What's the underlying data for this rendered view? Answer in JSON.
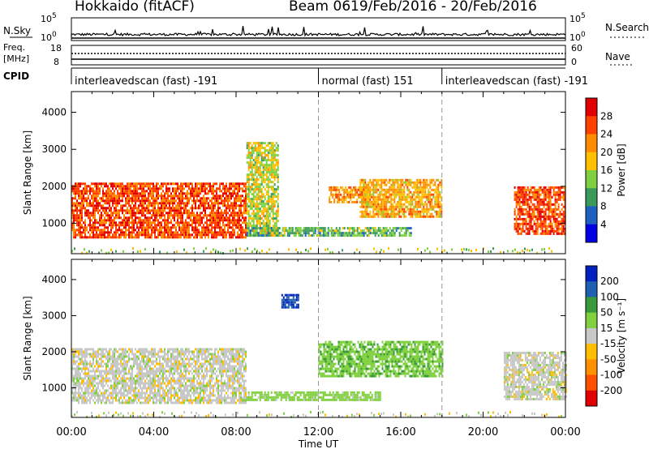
{
  "header": {
    "station": "Hokkaido (fitACF)",
    "beam": "Beam 06",
    "date_range": "19/Feb/2016 - 20/Feb/2016"
  },
  "top_panels": {
    "nsky": {
      "label": "N.Sky",
      "y_ticks": [
        "10^5",
        "10^0"
      ],
      "right_ticks": [
        "10^5",
        "10^0"
      ],
      "right_label": "N.Search"
    },
    "freq": {
      "label": "Freq.",
      "unit": "[MHz]",
      "y_ticks": [
        "18",
        "8"
      ],
      "right_ticks": [
        "60",
        "0"
      ],
      "right_label": "Nave"
    },
    "cpid": {
      "label": "CPID",
      "segments": [
        {
          "label": "interleavedscan (fast) -191",
          "start": "00:00"
        },
        {
          "label": "normal (fast) 151",
          "start": "12:00"
        },
        {
          "label": "interleavedscan (fast) -191",
          "start": "18:00"
        }
      ]
    }
  },
  "colors": {
    "power_scale": [
      "#0000e0",
      "#1f5fbf",
      "#3a9a5a",
      "#7fd040",
      "#ffc000",
      "#ff8c00",
      "#ff4000",
      "#e00000"
    ],
    "velocity_scale": [
      "#e00000",
      "#ff5000",
      "#ff9000",
      "#ffbf00",
      "#c8c8c8",
      "#80d040",
      "#3a9a3a",
      "#2060b0",
      "#0020c0"
    ]
  },
  "chart_data": [
    {
      "type": "heatmap",
      "name": "power",
      "ylabel": "Slant Range [km]",
      "y_ticks": [
        1000,
        2000,
        3000,
        4000
      ],
      "colorbar": {
        "label": "Power [dB]",
        "ticks": [
          "28",
          "24",
          "20",
          "16",
          "12",
          "8",
          "4"
        ]
      },
      "xlim": [
        "00:00",
        "24:00"
      ],
      "ylim": [
        180,
        4560
      ],
      "regions": [
        {
          "t": [
            0.0,
            8.5
          ],
          "range_km": [
            600,
            2100
          ],
          "value_db": 26
        },
        {
          "t": [
            8.5,
            10.0
          ],
          "range_km": [
            700,
            3200
          ],
          "value_db": 16
        },
        {
          "t": [
            12.5,
            14.5
          ],
          "range_km": [
            1600,
            2000
          ],
          "value_db": 22
        },
        {
          "t": [
            14.0,
            18.0
          ],
          "range_km": [
            1200,
            2200
          ],
          "value_db": 20
        },
        {
          "t": [
            8.5,
            16.5
          ],
          "range_km": [
            650,
            900
          ],
          "value_db": 12
        },
        {
          "t": [
            21.5,
            24.0
          ],
          "range_km": [
            700,
            2000
          ],
          "value_db": 26
        }
      ]
    },
    {
      "type": "heatmap",
      "name": "velocity",
      "ylabel": "Slant Range [km]",
      "xlabel": "Time UT",
      "y_ticks": [
        1000,
        2000,
        3000,
        4000
      ],
      "x_ticks": [
        "00:00",
        "04:00",
        "08:00",
        "12:00",
        "16:00",
        "20:00",
        "00:00"
      ],
      "colorbar": {
        "label": "Velocity [m s^-1]",
        "ticks": [
          "200",
          "100",
          "50",
          "15",
          "-15",
          "-50",
          "-100",
          "-200"
        ]
      },
      "xlim": [
        "00:00",
        "24:00"
      ],
      "ylim": [
        180,
        4560
      ],
      "regions": [
        {
          "t": [
            0.0,
            8.5
          ],
          "range_km": [
            600,
            2100
          ],
          "value_ms": 0
        },
        {
          "t": [
            12.0,
            18.0
          ],
          "range_km": [
            1300,
            2300
          ],
          "value_ms": 40
        },
        {
          "t": [
            8.5,
            15.0
          ],
          "range_km": [
            650,
            900
          ],
          "value_ms": 30
        },
        {
          "t": [
            10.2,
            11.0
          ],
          "range_km": [
            3200,
            3600
          ],
          "value_ms": 200
        },
        {
          "t": [
            21.0,
            24.0
          ],
          "range_km": [
            700,
            2000
          ],
          "value_ms": 0
        }
      ]
    }
  ]
}
